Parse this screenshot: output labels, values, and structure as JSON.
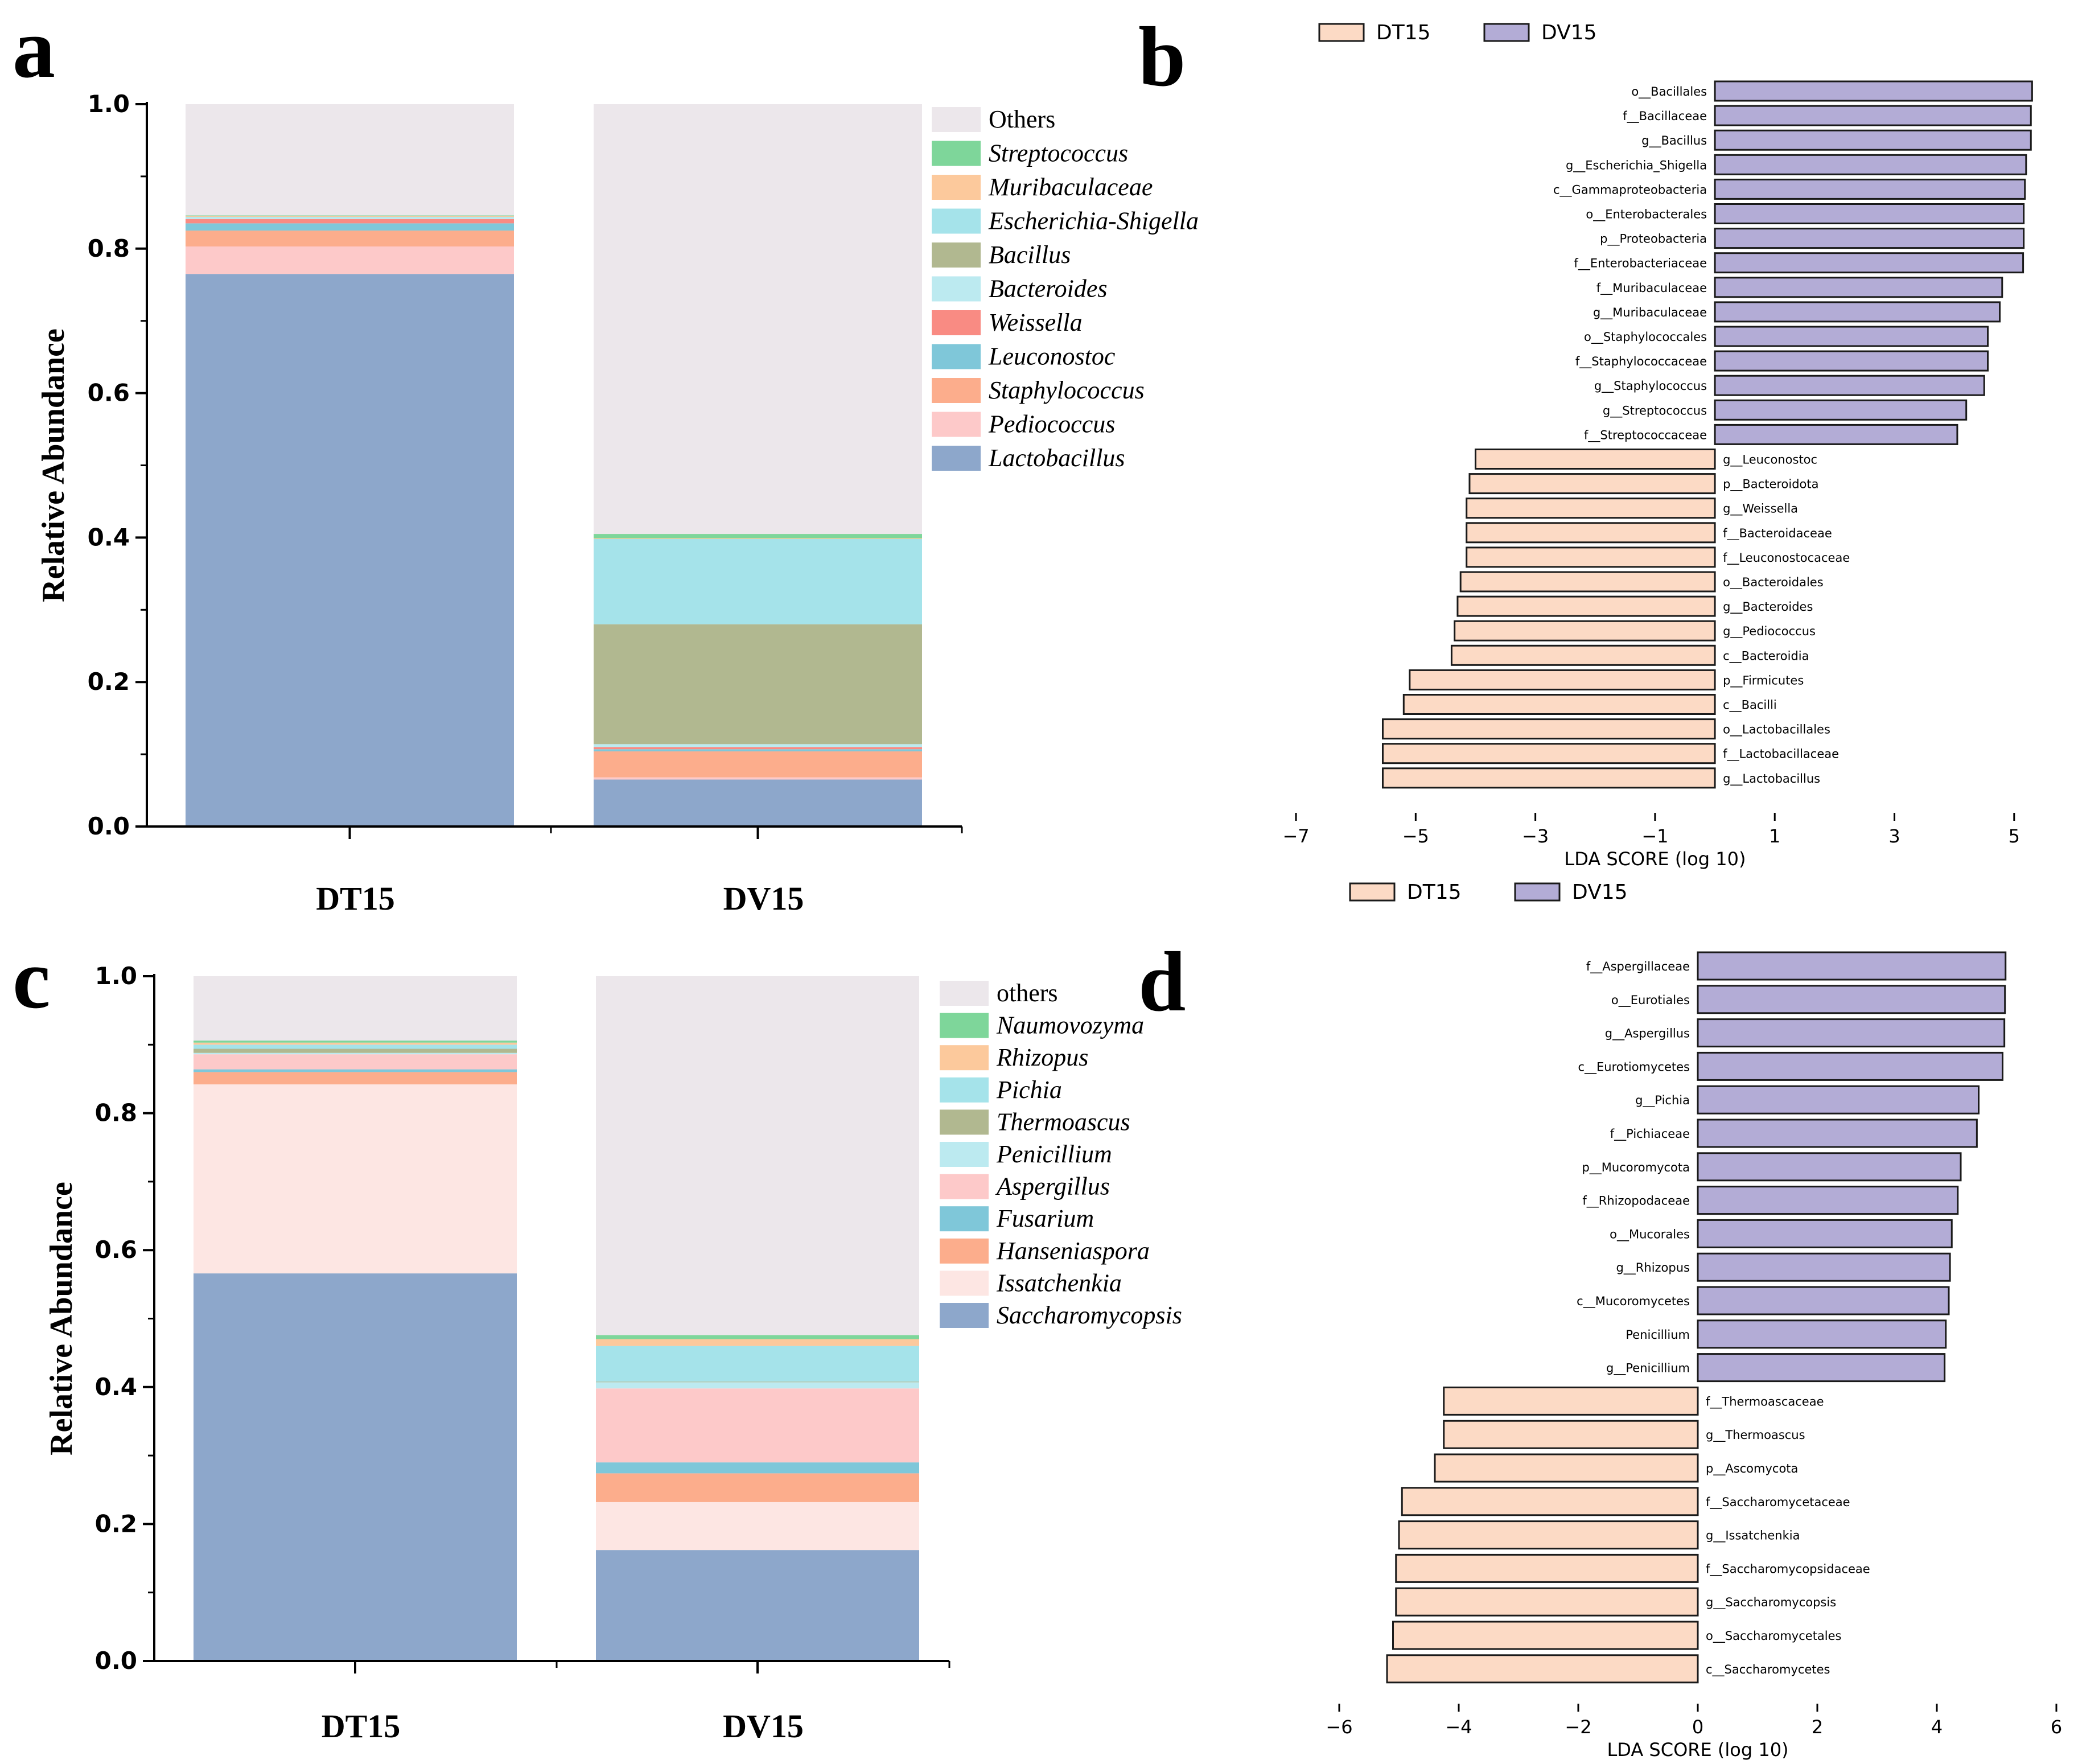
{
  "chart_data": [
    {
      "panel": "a",
      "type": "bar",
      "stacked": true,
      "ylabel": "Relative Abundance",
      "ylim": [
        0,
        1.0
      ],
      "yticks": [
        "0.0",
        "0.2",
        "0.4",
        "0.6",
        "0.8",
        "1.0"
      ],
      "categories": [
        "DT15",
        "DV15"
      ],
      "series": [
        {
          "name": "Lactobacillus",
          "color": "#8DA7CB",
          "values": [
            0.765,
            0.065
          ]
        },
        {
          "name": "Pediococcus",
          "color": "#FDC9C9",
          "values": [
            0.038,
            0.003
          ]
        },
        {
          "name": "Staphylococcus",
          "color": "#FCAD8C",
          "values": [
            0.022,
            0.036
          ]
        },
        {
          "name": "Leuconostoc",
          "color": "#7FC7D9",
          "values": [
            0.01,
            0.003
          ]
        },
        {
          "name": "Weissella",
          "color": "#F98B83",
          "values": [
            0.006,
            0.003
          ]
        },
        {
          "name": "Bacteroides",
          "color": "#BCEAF0",
          "values": [
            0.002,
            0.004
          ]
        },
        {
          "name": "Bacillus",
          "color": "#B1B890",
          "values": [
            0.0,
            0.166
          ]
        },
        {
          "name": "Escherichia-Shigella",
          "color": "#A5E3EA",
          "values": [
            0.001,
            0.118
          ]
        },
        {
          "name": "Muribaculaceae",
          "color": "#FCC99C",
          "values": [
            0.001,
            0.001
          ]
        },
        {
          "name": "Streptococcus",
          "color": "#7ED69A",
          "values": [
            0.001,
            0.006
          ]
        },
        {
          "name": "Others",
          "color": "#ECE7EB",
          "values": [
            0.154,
            0.595
          ]
        }
      ],
      "legend_order": [
        "Others",
        "Streptococcus",
        "Muribaculaceae",
        "Escherichia-Shigella",
        "Bacillus",
        "Bacteroides",
        "Weissella",
        "Leuconostoc",
        "Staphylococcus",
        "Pediococcus",
        "Lactobacillus"
      ],
      "legend_italic": [
        false,
        true,
        true,
        true,
        true,
        true,
        true,
        true,
        true,
        true,
        true
      ]
    },
    {
      "panel": "b",
      "type": "bar",
      "orientation": "horizontal",
      "xlabel": "LDA SCORE (log 10)",
      "xlim": [
        -7.2,
        6.2
      ],
      "xticks": [
        -7,
        -5,
        -3,
        -1,
        1,
        3,
        5
      ],
      "legend": [
        {
          "name": "DT15",
          "color": "#FCDAC5"
        },
        {
          "name": "DV15",
          "color": "#B3ACD6"
        }
      ],
      "labels": [
        "o__Bacillales",
        "f__Bacillaceae",
        "g__Bacillus",
        "g__Escherichia_Shigella",
        "c__Gammaproteobacteria",
        "o__Enterobacterales",
        "p__Proteobacteria",
        "f__Enterobacteriaceae",
        "f__Muribaculaceae",
        "g__Muribaculaceae",
        "o__Staphylococcales",
        "f__Staphylococcaceae",
        "g__Staphylococcus",
        "g__Streptococcus",
        "f__Streptococcaceae",
        "g__Leuconostoc",
        "p__Bacteroidota",
        "g__Weissella",
        "f__Bacteroidaceae",
        "f__Leuconostocaceae",
        "o__Bacteroidales",
        "g__Bacteroides",
        "g__Pediococcus",
        "c__Bacteroidia",
        "p__Firmicutes",
        "c__Bacilli",
        "o__Lactobacillales",
        "f__Lactobacillaceae",
        "g__Lactobacillus"
      ],
      "values": [
        5.3,
        5.28,
        5.28,
        5.2,
        5.18,
        5.16,
        5.16,
        5.15,
        4.8,
        4.76,
        4.56,
        4.56,
        4.5,
        4.2,
        4.05,
        -4.0,
        -4.1,
        -4.15,
        -4.15,
        -4.15,
        -4.25,
        -4.3,
        -4.35,
        -4.4,
        -5.1,
        -5.2,
        -5.55,
        -5.55,
        -5.55
      ],
      "groups": [
        "DV15",
        "DV15",
        "DV15",
        "DV15",
        "DV15",
        "DV15",
        "DV15",
        "DV15",
        "DV15",
        "DV15",
        "DV15",
        "DV15",
        "DV15",
        "DV15",
        "DV15",
        "DT15",
        "DT15",
        "DT15",
        "DT15",
        "DT15",
        "DT15",
        "DT15",
        "DT15",
        "DT15",
        "DT15",
        "DT15",
        "DT15",
        "DT15",
        "DT15"
      ]
    },
    {
      "panel": "c",
      "type": "bar",
      "stacked": true,
      "ylabel": "Relative Abundance",
      "ylim": [
        0,
        1.0
      ],
      "yticks": [
        "0.0",
        "0.2",
        "0.4",
        "0.6",
        "0.8",
        "1.0"
      ],
      "categories": [
        "DT15",
        "DV15"
      ],
      "series": [
        {
          "name": "Saccharomycopsis",
          "color": "#8DA7CB",
          "values": [
            0.566,
            0.162
          ]
        },
        {
          "name": "Issatchenkia",
          "color": "#FDE6E3",
          "values": [
            0.276,
            0.07
          ]
        },
        {
          "name": "Hanseniaspora",
          "color": "#FCAD8C",
          "values": [
            0.018,
            0.042
          ]
        },
        {
          "name": "Fusarium",
          "color": "#7FC7D9",
          "values": [
            0.004,
            0.016
          ]
        },
        {
          "name": "Aspergillus",
          "color": "#FDC9C9",
          "values": [
            0.022,
            0.108
          ]
        },
        {
          "name": "Penicillium",
          "color": "#BCEAF0",
          "values": [
            0.002,
            0.009
          ]
        },
        {
          "name": "Thermoascus",
          "color": "#B1B890",
          "values": [
            0.006,
            0.001
          ]
        },
        {
          "name": "Pichia",
          "color": "#A5E3EA",
          "values": [
            0.006,
            0.052
          ]
        },
        {
          "name": "Rhizopus",
          "color": "#FCC99C",
          "values": [
            0.003,
            0.01
          ]
        },
        {
          "name": "Naumovozyma",
          "color": "#7ED69A",
          "values": [
            0.003,
            0.006
          ]
        },
        {
          "name": "others",
          "color": "#ECE7EB",
          "values": [
            0.094,
            0.524
          ]
        }
      ],
      "legend_order": [
        "others",
        "Naumovozyma",
        "Rhizopus",
        "Pichia",
        "Thermoascus",
        "Penicillium",
        "Aspergillus",
        "Fusarium",
        "Hanseniaspora",
        "Issatchenkia",
        "Saccharomycopsis"
      ],
      "legend_italic": [
        false,
        true,
        true,
        true,
        true,
        true,
        true,
        true,
        true,
        true,
        true
      ]
    },
    {
      "panel": "d",
      "type": "bar",
      "orientation": "horizontal",
      "xlabel": "LDA SCORE (log 10)",
      "xlim": [
        -6,
        6
      ],
      "xticks": [
        -6,
        -4,
        -2,
        0,
        2,
        4,
        6
      ],
      "legend": [
        {
          "name": "DT15",
          "color": "#FCDAC5"
        },
        {
          "name": "DV15",
          "color": "#B3ACD6"
        }
      ],
      "labels": [
        "f__Aspergillaceae",
        "o__Eurotiales",
        "g__Aspergillus",
        "c__Eurotiomycetes",
        "g__Pichia",
        "f__Pichiaceae",
        "p__Mucoromycota",
        "f__Rhizopodaceae",
        "o__Mucorales",
        "g__Rhizopus",
        "c__Mucoromycetes",
        "Penicillium",
        "g__Penicillium",
        "f__Thermoascaceae",
        "g__Thermoascus",
        "p__Ascomycota",
        "f__Saccharomycetaceae",
        "g__Issatchenkia",
        "f__Saccharomycopsidaceae",
        "g__Saccharomycopsis",
        "o__Saccharomycetales",
        "c__Saccharomycetes"
      ],
      "values": [
        5.15,
        5.14,
        5.13,
        5.1,
        4.7,
        4.67,
        4.4,
        4.35,
        4.25,
        4.22,
        4.2,
        4.15,
        4.13,
        -4.25,
        -4.25,
        -4.4,
        -4.95,
        -5.0,
        -5.05,
        -5.05,
        -5.1,
        -5.2
      ],
      "groups": [
        "DV15",
        "DV15",
        "DV15",
        "DV15",
        "DV15",
        "DV15",
        "DV15",
        "DV15",
        "DV15",
        "DV15",
        "DV15",
        "DV15",
        "DV15",
        "DT15",
        "DT15",
        "DT15",
        "DT15",
        "DT15",
        "DT15",
        "DT15",
        "DT15",
        "DT15"
      ]
    }
  ]
}
